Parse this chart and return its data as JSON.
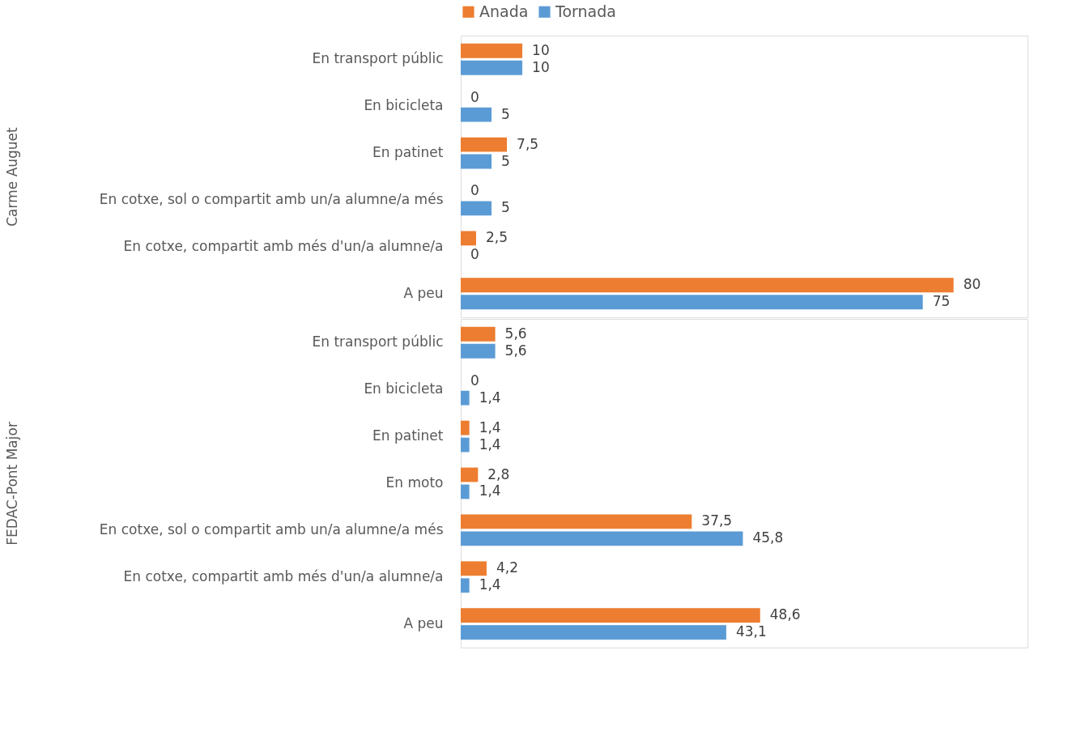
{
  "chart_data": [
    {
      "type": "bar",
      "orientation": "horizontal",
      "ylabel": "Carme Auguet",
      "legend": "top",
      "grid": false,
      "tick_labels": "y",
      "xlim": [
        0,
        92
      ],
      "categories": [
        "En transport públic",
        "En bicicleta",
        "En patinet",
        "En cotxe, sol o compartit amb un/a alumne/a més",
        "En cotxe, compartit amb més d'un/a alumne/a",
        "A peu"
      ],
      "series": [
        {
          "name": "Anada",
          "color": "#ed7d31",
          "values": [
            10,
            0,
            7.5,
            0,
            2.5,
            80
          ],
          "value_labels": [
            "10",
            "0",
            "7,5",
            "0",
            "2,5",
            "80"
          ]
        },
        {
          "name": "Tornada",
          "color": "#5b9bd5",
          "values": [
            10,
            5,
            5,
            5,
            0,
            75
          ],
          "value_labels": [
            "10",
            "5",
            "5",
            "5",
            "0",
            "75"
          ]
        }
      ]
    },
    {
      "type": "bar",
      "orientation": "horizontal",
      "ylabel": "FEDAC-Pont Major",
      "legend": "top",
      "grid": false,
      "tick_labels": "y",
      "xlim": [
        0,
        92
      ],
      "categories": [
        "En transport públic",
        "En bicicleta",
        "En patinet",
        "En moto",
        "En cotxe, sol o compartit amb un/a alumne/a més",
        "En cotxe, compartit amb més d'un/a alumne/a",
        "A peu"
      ],
      "series": [
        {
          "name": "Anada",
          "color": "#ed7d31",
          "values": [
            5.6,
            0,
            1.4,
            2.8,
            37.5,
            4.2,
            48.6
          ],
          "value_labels": [
            "5,6",
            "0",
            "1,4",
            "2,8",
            "37,5",
            "4,2",
            "48,6"
          ]
        },
        {
          "name": "Tornada",
          "color": "#5b9bd5",
          "values": [
            5.6,
            1.4,
            1.4,
            1.4,
            45.8,
            1.4,
            43.1
          ],
          "value_labels": [
            "5,6",
            "1,4",
            "1,4",
            "1,4",
            "45,8",
            "1,4",
            "43,1"
          ]
        }
      ]
    }
  ]
}
